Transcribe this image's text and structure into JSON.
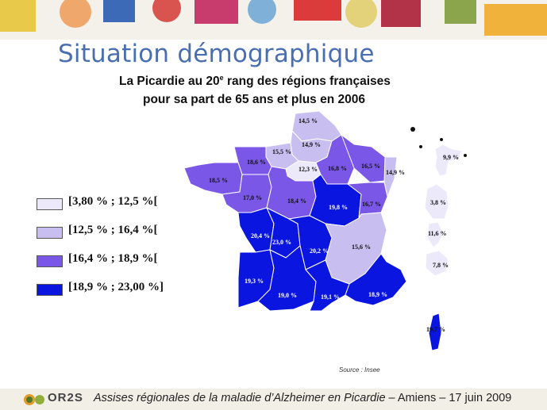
{
  "slide": {
    "title": "Situation démographique",
    "subtitle_line1_a": "La Picardie au 20",
    "subtitle_line1_sup": "e",
    "subtitle_line1_b": " rang des régions françaises",
    "subtitle_line2": "pour sa part de 65 ans et plus en 2006"
  },
  "legend": [
    {
      "label": "[3,80 % ; 12,5 %[",
      "color": "#ece9fb"
    },
    {
      "label": "[12,5 % ; 16,4 %[",
      "color": "#c8bff0"
    },
    {
      "label": "[16,4 % ; 18,9 %[",
      "color": "#7a57e6"
    },
    {
      "label": "[18,9 % ; 23,00 %]",
      "color": "#0a16e0"
    }
  ],
  "regions": [
    {
      "name": "Nord-Pas-de-Calais",
      "value": "14,5 %",
      "class": 1
    },
    {
      "name": "Picardie",
      "value": "14,9 %",
      "class": 1
    },
    {
      "name": "Haute-Normandie",
      "value": "15,5 %",
      "class": 1
    },
    {
      "name": "Basse-Normandie",
      "value": "18,6 %",
      "class": 2
    },
    {
      "name": "Bretagne",
      "value": "18,5 %",
      "class": 2
    },
    {
      "name": "Île-de-France",
      "value": "12,3 %",
      "class": 0
    },
    {
      "name": "Champagne-Ardenne",
      "value": "16,8 %",
      "class": 2
    },
    {
      "name": "Lorraine",
      "value": "16,5 %",
      "class": 2
    },
    {
      "name": "Alsace",
      "value": "14,9 %",
      "class": 1
    },
    {
      "name": "Pays de la Loire",
      "value": "17,0 %",
      "class": 2
    },
    {
      "name": "Centre",
      "value": "18,4 %",
      "class": 2
    },
    {
      "name": "Bourgogne",
      "value": "19,8 %",
      "class": 3
    },
    {
      "name": "Franche-Comté",
      "value": "16,7 %",
      "class": 2
    },
    {
      "name": "Poitou-Charentes",
      "value": "20,4 %",
      "class": 3
    },
    {
      "name": "Limousin",
      "value": "23,0 %",
      "class": 3
    },
    {
      "name": "Auvergne",
      "value": "20,2 %",
      "class": 3
    },
    {
      "name": "Rhône-Alpes",
      "value": "15,6 %",
      "class": 1
    },
    {
      "name": "Aquitaine",
      "value": "19,3 %",
      "class": 3
    },
    {
      "name": "Midi-Pyrénées",
      "value": "19,0 %",
      "class": 3
    },
    {
      "name": "Languedoc-Roussillon",
      "value": "19,1 %",
      "class": 3
    },
    {
      "name": "Provence-Alpes-Côte d'Azur",
      "value": "18,9 %",
      "class": 3
    },
    {
      "name": "Corse",
      "value": "19,7 %",
      "class": 3
    },
    {
      "name": "Guadeloupe",
      "value": "9,9 %",
      "class": 0
    },
    {
      "name": "Guyane",
      "value": "3,8 %",
      "class": 0
    },
    {
      "name": "Martinique",
      "value": "11,6 %",
      "class": 0
    },
    {
      "name": "La Réunion",
      "value": "7,8 %",
      "class": 0
    }
  ],
  "source": "Source : Insee",
  "footer": {
    "logo": "OR2S",
    "text_italic": "Assises régionales de la maladie d’Alzheimer en Picardie",
    "text_plain": " – Amiens – 17 juin 2009"
  }
}
